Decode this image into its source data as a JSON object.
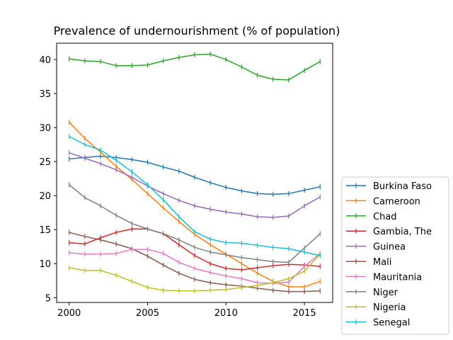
{
  "chart_data": {
    "type": "line",
    "title": "Prevalence of undernourishment (% of population)",
    "xlabel": "",
    "ylabel": "",
    "x": [
      2000,
      2001,
      2002,
      2003,
      2004,
      2005,
      2006,
      2007,
      2008,
      2009,
      2010,
      2011,
      2012,
      2013,
      2014,
      2015,
      2016
    ],
    "xlim": [
      1999.2,
      2016.8
    ],
    "ylim": [
      4.3,
      42.4
    ],
    "xticks": [
      2000,
      2005,
      2010,
      2015
    ],
    "yticks": [
      5,
      10,
      15,
      20,
      25,
      30,
      35,
      40
    ],
    "grid": false,
    "legend_position": "lower-right-outside",
    "series": [
      {
        "name": "Burkina Faso",
        "color": "#1f77b4",
        "values": [
          25.4,
          25.6,
          25.8,
          25.6,
          25.3,
          24.9,
          24.2,
          23.6,
          22.7,
          21.9,
          21.2,
          20.7,
          20.3,
          20.2,
          20.3,
          20.8,
          21.3
        ]
      },
      {
        "name": "Cameroon",
        "color": "#ff7f0e",
        "values": [
          30.8,
          28.4,
          26.4,
          24.3,
          22.4,
          20.3,
          18.2,
          16.2,
          14.3,
          12.8,
          11.4,
          10.0,
          8.6,
          7.4,
          6.6,
          6.6,
          7.4
        ]
      },
      {
        "name": "Chad",
        "color": "#2ca02c",
        "values": [
          40.1,
          39.8,
          39.7,
          39.1,
          39.1,
          39.2,
          39.8,
          40.3,
          40.7,
          40.8,
          40.0,
          38.9,
          37.7,
          37.1,
          37.0,
          38.4,
          39.7
        ]
      },
      {
        "name": "Gambia, The",
        "color": "#d62728",
        "values": [
          13.1,
          12.9,
          13.8,
          14.6,
          15.1,
          15.1,
          14.4,
          12.8,
          11.2,
          10.0,
          9.3,
          9.1,
          9.4,
          9.7,
          9.9,
          9.8,
          9.6
        ]
      },
      {
        "name": "Guinea",
        "color": "#9467bd",
        "values": [
          26.3,
          25.5,
          24.7,
          23.8,
          22.7,
          21.4,
          20.3,
          19.3,
          18.5,
          18.0,
          17.6,
          17.3,
          16.9,
          16.8,
          17.0,
          18.5,
          19.8
        ]
      },
      {
        "name": "Mali",
        "color": "#8c564b",
        "values": [
          14.6,
          14.0,
          13.5,
          12.9,
          12.2,
          11.1,
          9.8,
          8.6,
          7.7,
          7.2,
          6.9,
          6.7,
          6.4,
          6.1,
          5.9,
          5.9,
          6.0
        ]
      },
      {
        "name": "Mauritania",
        "color": "#e377c2",
        "values": [
          11.6,
          11.4,
          11.4,
          11.5,
          12.1,
          12.1,
          11.5,
          10.2,
          9.3,
          8.7,
          8.2,
          7.8,
          7.2,
          7.1,
          7.3,
          9.6,
          11.5
        ]
      },
      {
        "name": "Niger",
        "color": "#7f7f7f",
        "values": [
          21.6,
          19.7,
          18.5,
          17.1,
          15.9,
          15.1,
          14.4,
          13.5,
          12.4,
          11.7,
          11.3,
          10.9,
          10.6,
          10.3,
          10.2,
          12.3,
          14.4
        ]
      },
      {
        "name": "Nigeria",
        "color": "#bcbd22",
        "values": [
          9.4,
          9.0,
          9.0,
          8.3,
          7.4,
          6.5,
          6.1,
          6.0,
          6.0,
          6.1,
          6.2,
          6.5,
          6.8,
          7.2,
          7.8,
          8.9,
          11.4
        ]
      },
      {
        "name": "Senegal",
        "color": "#17becf",
        "values": [
          28.7,
          27.5,
          26.7,
          25.2,
          23.5,
          21.6,
          19.4,
          16.9,
          14.7,
          13.6,
          13.1,
          13.0,
          12.7,
          12.4,
          12.2,
          11.7,
          11.2
        ]
      }
    ]
  }
}
